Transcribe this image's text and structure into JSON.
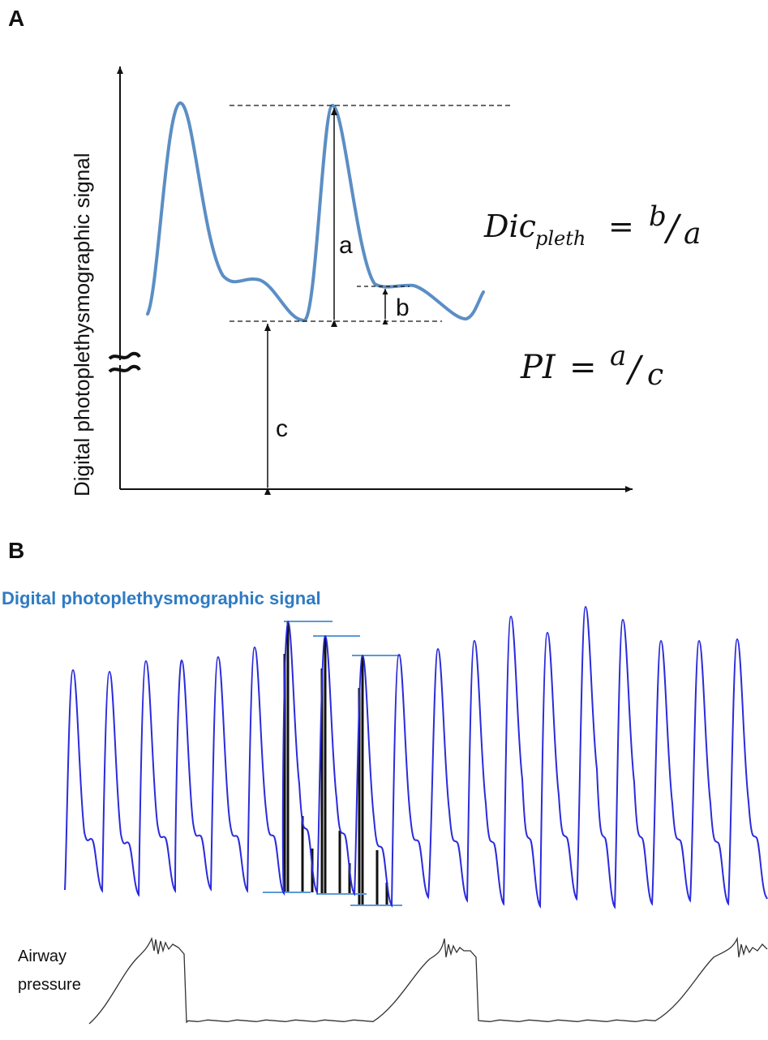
{
  "panel_a": {
    "label": "A",
    "y_axis_title": "Digital photoplethysmographic signal",
    "markers": {
      "a": "a",
      "b": "b",
      "c": "c"
    },
    "formula_dic": {
      "main": "Dic",
      "sub": "pleth",
      "eq": "=",
      "num": "b",
      "slash": "/",
      "den": "a"
    },
    "formula_pi": {
      "main": "PI",
      "eq": "=",
      "num": "a",
      "slash": "/",
      "den": "c"
    },
    "colors": {
      "wave": "#5b8ec4",
      "axis": "#111111"
    }
  },
  "panel_b": {
    "label": "B",
    "signal_title": "Digital photoplethysmographic signal",
    "airway_label_line1": "Airway",
    "airway_label_line2": "pressure",
    "colors": {
      "title": "#2e7bc4",
      "ppg": "#2b2bdc",
      "guide": "#5a9ad6",
      "airway": "#333333"
    }
  }
}
